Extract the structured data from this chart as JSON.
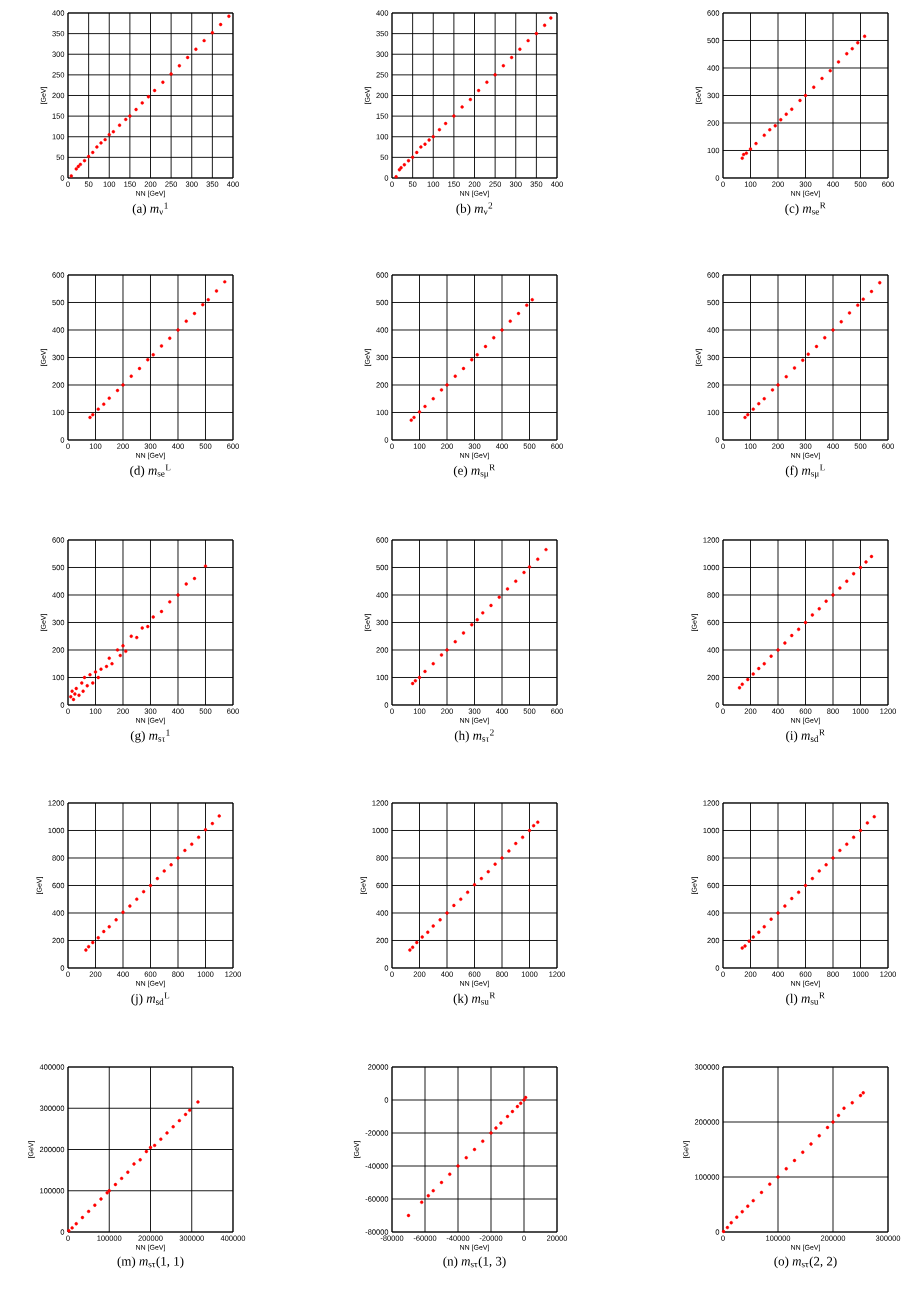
{
  "chart_data": [
    {
      "type": "scatter",
      "title": "(a) *m*$_{ν}$$^{1}$",
      "xlabel": "NN [GeV]",
      "ylabel": "[GeV]",
      "color": "#ff0000",
      "grid": true,
      "xlim": [
        0,
        400
      ],
      "ylim": [
        0,
        400
      ],
      "xticks": [
        0,
        50,
        100,
        150,
        200,
        250,
        300,
        350,
        400
      ],
      "yticks": [
        0,
        50,
        100,
        150,
        200,
        250,
        300,
        350,
        400
      ],
      "x": [
        8,
        20,
        25,
        30,
        40,
        50,
        60,
        70,
        80,
        90,
        100,
        110,
        125,
        140,
        150,
        165,
        180,
        195,
        210,
        230,
        250,
        270,
        290,
        310,
        330,
        350,
        370,
        390
      ],
      "values": [
        5,
        22,
        28,
        33,
        42,
        52,
        62,
        75,
        85,
        93,
        105,
        112,
        128,
        142,
        150,
        166,
        182,
        197,
        212,
        232,
        252,
        272,
        292,
        312,
        333,
        352,
        372,
        392
      ]
    },
    {
      "type": "scatter",
      "title": "(b) *m*$_{ν}$$^{2}$",
      "xlabel": "NN [GeV]",
      "ylabel": "[GeV]",
      "color": "#ff0000",
      "grid": true,
      "xlim": [
        0,
        400
      ],
      "ylim": [
        0,
        400
      ],
      "xticks": [
        0,
        50,
        100,
        150,
        200,
        250,
        300,
        350,
        400
      ],
      "yticks": [
        0,
        50,
        100,
        150,
        200,
        250,
        300,
        350,
        400
      ],
      "x": [
        10,
        18,
        22,
        30,
        40,
        50,
        60,
        70,
        80,
        90,
        100,
        115,
        130,
        150,
        170,
        190,
        210,
        230,
        250,
        270,
        290,
        310,
        330,
        350,
        370,
        385
      ],
      "values": [
        3,
        20,
        25,
        32,
        42,
        50,
        62,
        75,
        82,
        92,
        100,
        117,
        132,
        150,
        172,
        190,
        212,
        232,
        250,
        272,
        292,
        312,
        333,
        350,
        370,
        388
      ]
    },
    {
      "type": "scatter",
      "title": "(c) *m*$_{se}$$^{R}$",
      "xlabel": "NN [GeV]",
      "ylabel": "[GeV]",
      "color": "#ff0000",
      "grid": true,
      "xlim": [
        0,
        600
      ],
      "ylim": [
        0,
        600
      ],
      "xticks": [
        0,
        100,
        200,
        300,
        400,
        500,
        600
      ],
      "yticks": [
        0,
        100,
        200,
        300,
        400,
        500,
        600
      ],
      "x": [
        70,
        75,
        85,
        100,
        120,
        150,
        170,
        190,
        210,
        230,
        250,
        280,
        300,
        330,
        360,
        390,
        420,
        450,
        470,
        490,
        515
      ],
      "values": [
        72,
        85,
        90,
        105,
        125,
        155,
        175,
        190,
        212,
        232,
        250,
        282,
        300,
        330,
        362,
        390,
        422,
        452,
        470,
        492,
        515
      ]
    },
    {
      "type": "scatter",
      "title": "(d) *m*$_{se}$$^{L}$",
      "xlabel": "NN [GeV]",
      "ylabel": "[GeV]",
      "color": "#ff0000",
      "grid": true,
      "xlim": [
        0,
        600
      ],
      "ylim": [
        0,
        600
      ],
      "xticks": [
        0,
        100,
        200,
        300,
        400,
        500,
        600
      ],
      "yticks": [
        0,
        100,
        200,
        300,
        400,
        500,
        600
      ],
      "x": [
        80,
        90,
        110,
        130,
        150,
        180,
        200,
        230,
        260,
        290,
        310,
        340,
        370,
        400,
        430,
        460,
        490,
        510,
        540,
        570
      ],
      "values": [
        82,
        92,
        112,
        130,
        152,
        180,
        200,
        232,
        260,
        292,
        310,
        342,
        370,
        400,
        432,
        460,
        492,
        510,
        542,
        575
      ]
    },
    {
      "type": "scatter",
      "title": "(e) *m*$_{sμ}$$^{R}$",
      "xlabel": "NN [GeV]",
      "ylabel": "[GeV]",
      "color": "#ff0000",
      "grid": true,
      "xlim": [
        0,
        600
      ],
      "ylim": [
        0,
        600
      ],
      "xticks": [
        0,
        100,
        200,
        300,
        400,
        500,
        600
      ],
      "yticks": [
        0,
        100,
        200,
        300,
        400,
        500,
        600
      ],
      "x": [
        70,
        80,
        100,
        120,
        150,
        180,
        200,
        230,
        260,
        290,
        310,
        340,
        370,
        400,
        430,
        460,
        490,
        510
      ],
      "values": [
        72,
        82,
        102,
        122,
        150,
        182,
        200,
        232,
        260,
        292,
        310,
        340,
        372,
        400,
        432,
        460,
        490,
        510
      ]
    },
    {
      "type": "scatter",
      "title": "(f) *m*$_{sμ}$$^{L}$",
      "xlabel": "NN [GeV]",
      "ylabel": "[GeV]",
      "color": "#ff0000",
      "grid": true,
      "xlim": [
        0,
        600
      ],
      "ylim": [
        0,
        600
      ],
      "xticks": [
        0,
        100,
        200,
        300,
        400,
        500,
        600
      ],
      "yticks": [
        0,
        100,
        200,
        300,
        400,
        500,
        600
      ],
      "x": [
        80,
        90,
        110,
        130,
        150,
        180,
        200,
        230,
        260,
        290,
        310,
        340,
        370,
        400,
        430,
        460,
        490,
        510,
        540,
        570
      ],
      "values": [
        82,
        92,
        112,
        132,
        150,
        182,
        200,
        230,
        262,
        290,
        312,
        340,
        372,
        400,
        430,
        462,
        490,
        512,
        540,
        572
      ]
    },
    {
      "type": "scatter",
      "title": "(g) *m*$_{sτ}$$^{1}$",
      "xlabel": "NN [GeV]",
      "ylabel": "[GeV]",
      "color": "#ff0000",
      "grid": true,
      "xlim": [
        0,
        600
      ],
      "ylim": [
        0,
        600
      ],
      "xticks": [
        0,
        100,
        200,
        300,
        400,
        500,
        600
      ],
      "yticks": [
        0,
        100,
        200,
        300,
        400,
        500,
        600
      ],
      "x": [
        10,
        15,
        20,
        25,
        30,
        40,
        50,
        55,
        60,
        70,
        80,
        90,
        100,
        110,
        120,
        140,
        150,
        160,
        180,
        190,
        200,
        210,
        230,
        250,
        270,
        290,
        310,
        340,
        370,
        400,
        430,
        460,
        500
      ],
      "values": [
        30,
        50,
        20,
        40,
        60,
        35,
        80,
        50,
        100,
        70,
        110,
        80,
        120,
        100,
        130,
        140,
        170,
        150,
        200,
        180,
        215,
        195,
        250,
        245,
        280,
        285,
        320,
        340,
        375,
        400,
        440,
        460,
        505
      ]
    },
    {
      "type": "scatter",
      "title": "(h) *m*$_{sτ}$$^{2}$",
      "xlabel": "NN [GeV]",
      "ylabel": "[GeV]",
      "color": "#ff0000",
      "grid": true,
      "xlim": [
        0,
        600
      ],
      "ylim": [
        0,
        600
      ],
      "xticks": [
        0,
        100,
        200,
        300,
        400,
        500,
        600
      ],
      "yticks": [
        0,
        100,
        200,
        300,
        400,
        500,
        600
      ],
      "x": [
        75,
        85,
        100,
        120,
        150,
        180,
        200,
        230,
        260,
        290,
        310,
        330,
        360,
        390,
        420,
        450,
        480,
        500,
        530,
        560
      ],
      "values": [
        78,
        88,
        100,
        122,
        150,
        182,
        200,
        230,
        262,
        292,
        310,
        335,
        362,
        392,
        422,
        450,
        482,
        502,
        530,
        565
      ]
    },
    {
      "type": "scatter",
      "title": "(i) *m*$_{sd}$$^{R}$",
      "xlabel": "NN [GeV]",
      "ylabel": "[GeV]",
      "color": "#ff0000",
      "grid": true,
      "xlim": [
        0,
        1200
      ],
      "ylim": [
        0,
        1200
      ],
      "xticks": [
        0,
        200,
        400,
        600,
        800,
        1000,
        1200
      ],
      "yticks": [
        0,
        200,
        400,
        600,
        800,
        1000,
        1200
      ],
      "x": [
        120,
        140,
        180,
        220,
        260,
        300,
        350,
        400,
        450,
        500,
        550,
        600,
        650,
        700,
        750,
        800,
        850,
        900,
        950,
        1000,
        1040,
        1080
      ],
      "values": [
        125,
        150,
        185,
        225,
        265,
        300,
        355,
        400,
        450,
        505,
        550,
        600,
        655,
        700,
        755,
        800,
        850,
        900,
        955,
        1000,
        1040,
        1080
      ]
    },
    {
      "type": "scatter",
      "title": "(j) *m*$_{sd}$$^{L}$",
      "xlabel": "NN [GeV]",
      "ylabel": "[GeV]",
      "color": "#ff0000",
      "grid": true,
      "xlim": [
        0,
        1200
      ],
      "ylim": [
        0,
        1200
      ],
      "xticks": [
        0,
        200,
        400,
        600,
        800,
        1000,
        1200
      ],
      "yticks": [
        0,
        200,
        400,
        600,
        800,
        1000,
        1200
      ],
      "x": [
        130,
        150,
        180,
        220,
        260,
        300,
        350,
        400,
        450,
        500,
        550,
        600,
        650,
        700,
        750,
        800,
        850,
        900,
        950,
        1000,
        1050,
        1100
      ],
      "values": [
        130,
        155,
        185,
        220,
        265,
        300,
        350,
        405,
        450,
        500,
        555,
        600,
        650,
        705,
        750,
        800,
        855,
        900,
        950,
        1005,
        1050,
        1105
      ]
    },
    {
      "type": "scatter",
      "title": "(k) *m*$_{su}$$^{R}$",
      "xlabel": "NN [GeV]",
      "ylabel": "[GeV]",
      "color": "#ff0000",
      "grid": true,
      "xlim": [
        0,
        1200
      ],
      "ylim": [
        0,
        1200
      ],
      "xticks": [
        0,
        200,
        400,
        600,
        800,
        1000,
        1200
      ],
      "yticks": [
        0,
        200,
        400,
        600,
        800,
        1000,
        1200
      ],
      "x": [
        130,
        150,
        180,
        220,
        260,
        300,
        350,
        400,
        450,
        500,
        550,
        600,
        650,
        700,
        750,
        800,
        850,
        900,
        950,
        1000,
        1030,
        1060
      ],
      "values": [
        130,
        150,
        185,
        225,
        260,
        305,
        350,
        400,
        455,
        500,
        550,
        605,
        650,
        700,
        755,
        800,
        850,
        905,
        950,
        1000,
        1035,
        1060
      ]
    },
    {
      "type": "scatter",
      "title": "(l) *m*$_{su}$$^{R}$",
      "xlabel": "NN [GeV]",
      "ylabel": "[GeV]",
      "color": "#ff0000",
      "grid": true,
      "xlim": [
        0,
        1200
      ],
      "ylim": [
        0,
        1200
      ],
      "xticks": [
        0,
        200,
        400,
        600,
        800,
        1000,
        1200
      ],
      "yticks": [
        0,
        200,
        400,
        600,
        800,
        1000,
        1200
      ],
      "x": [
        140,
        160,
        190,
        220,
        260,
        300,
        350,
        400,
        450,
        500,
        550,
        600,
        650,
        700,
        750,
        800,
        850,
        900,
        950,
        1000,
        1050,
        1100
      ],
      "values": [
        145,
        160,
        195,
        225,
        260,
        300,
        355,
        400,
        450,
        505,
        550,
        600,
        650,
        705,
        750,
        800,
        855,
        900,
        950,
        1000,
        1055,
        1100
      ]
    },
    {
      "type": "scatter",
      "title": "(m) *m*$_{sτ}$(1, 1)",
      "xlabel": "NN [GeV]",
      "ylabel": "[GeV]",
      "color": "#ff0000",
      "grid": true,
      "xlim": [
        0,
        400000
      ],
      "ylim": [
        0,
        400000
      ],
      "xticks": [
        0,
        100000,
        200000,
        300000,
        400000
      ],
      "yticks": [
        0,
        100000,
        200000,
        300000,
        400000
      ],
      "x": [
        2000,
        10000,
        20000,
        35000,
        50000,
        65000,
        80000,
        95000,
        100000,
        115000,
        130000,
        145000,
        160000,
        175000,
        190000,
        200000,
        210000,
        225000,
        240000,
        255000,
        270000,
        285000,
        295000,
        315000
      ],
      "values": [
        3000,
        10000,
        20000,
        35000,
        50000,
        65000,
        80000,
        95000,
        100000,
        115000,
        130000,
        145000,
        165000,
        175000,
        195000,
        205000,
        210000,
        225000,
        240000,
        255000,
        270000,
        285000,
        295000,
        315000
      ]
    },
    {
      "type": "scatter",
      "title": "(n) *m*$_{sτ}$(1, 3)",
      "xlabel": "NN [GeV]",
      "ylabel": "[GeV]",
      "color": "#ff0000",
      "grid": true,
      "xlim": [
        -80000,
        20000
      ],
      "ylim": [
        -80000,
        20000
      ],
      "xticks": [
        -80000,
        -60000,
        -40000,
        -20000,
        0,
        20000
      ],
      "yticks": [
        -80000,
        -60000,
        -40000,
        -20000,
        0,
        20000
      ],
      "x": [
        -70000,
        -62000,
        -58000,
        -55000,
        -50000,
        -45000,
        -40000,
        -35000,
        -30000,
        -25000,
        -20000,
        -17000,
        -14000,
        -10000,
        -7000,
        -4000,
        -2000,
        0,
        1000
      ],
      "values": [
        -70000,
        -62000,
        -58000,
        -55000,
        -50000,
        -45000,
        -40000,
        -35000,
        -30000,
        -25000,
        -20000,
        -17000,
        -14000,
        -10000,
        -7000,
        -4000,
        -2000,
        0,
        1500
      ]
    },
    {
      "type": "scatter",
      "title": "(o) *m*$_{sτ}$(2, 2)",
      "xlabel": "NN [GeV]",
      "ylabel": "[GeV]",
      "color": "#ff0000",
      "grid": true,
      "xlim": [
        0,
        300000
      ],
      "ylim": [
        0,
        300000
      ],
      "xticks": [
        0,
        100000,
        200000,
        300000
      ],
      "yticks": [
        0,
        100000,
        200000,
        300000
      ],
      "x": [
        1000,
        8000,
        15000,
        25000,
        35000,
        45000,
        55000,
        70000,
        85000,
        100000,
        115000,
        130000,
        145000,
        160000,
        175000,
        190000,
        200000,
        210000,
        220000,
        235000,
        250000,
        255000
      ],
      "values": [
        1000,
        8000,
        17000,
        27000,
        37000,
        47000,
        57000,
        72000,
        87000,
        100000,
        115000,
        130000,
        145000,
        160000,
        175000,
        190000,
        200000,
        212000,
        225000,
        235000,
        248000,
        253000
      ]
    }
  ]
}
